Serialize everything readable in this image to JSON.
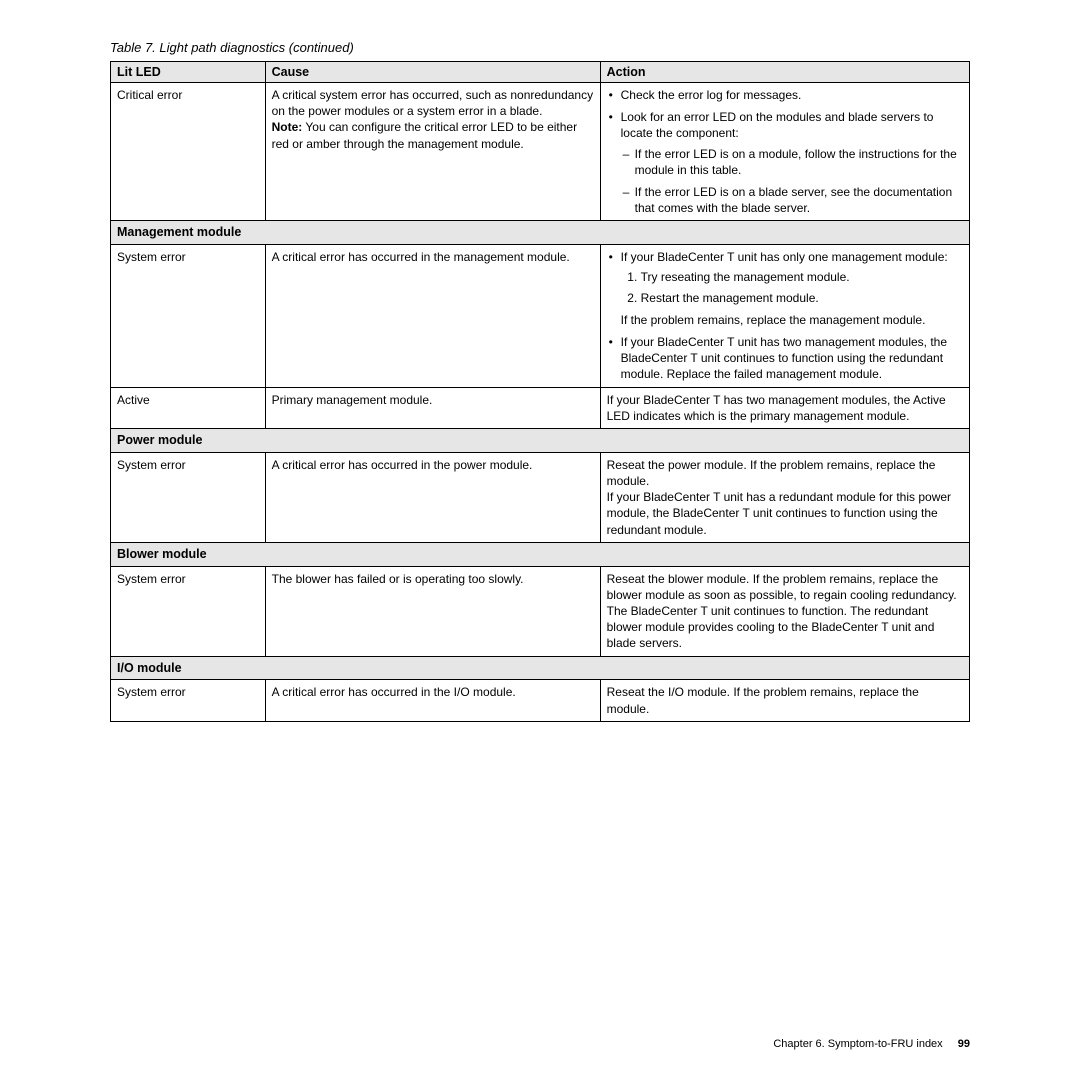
{
  "caption": "Table 7. Light path diagnostics  (continued)",
  "columns": [
    "Lit LED",
    "Cause",
    "Action"
  ],
  "rows": {
    "critical_error": {
      "led": "Critical error",
      "cause_1": "A critical system error has occurred, such as nonredundancy on the power modules or a system error in a blade.",
      "cause_note_label": "Note:",
      "cause_note_text": " You can configure the critical error LED to be either red or amber through the management module.",
      "action_b1": "Check the error log for messages.",
      "action_b2": "Look for an error LED on the modules and blade servers to locate the component:",
      "action_d1": "If the error LED is on a module, follow the instructions for the module in this table.",
      "action_d2": "If the error LED is on a blade server, see the documentation that comes with the blade server."
    },
    "mgmt_header": "Management module",
    "mgmt_system_error": {
      "led": "System error",
      "cause": "A critical error has occurred in the management module.",
      "action_b1": "If your BladeCenter T unit has only one management module:",
      "action_n1": "Try reseating the management module.",
      "action_n2": "Restart the management module.",
      "action_p1": "If the problem remains, replace the management module.",
      "action_b2": "If your BladeCenter T unit has two management modules, the BladeCenter T unit continues to function using the redundant module. Replace the failed management module."
    },
    "mgmt_active": {
      "led": "Active",
      "cause": "Primary management module.",
      "action": "If your BladeCenter T has two management modules, the Active LED indicates which is the primary management module."
    },
    "power_header": "Power module",
    "power_system_error": {
      "led": "System error",
      "cause": "A critical error has occurred in the power module.",
      "action_l1": "Reseat the power module. If the problem remains, replace the module.",
      "action_l2": "If your BladeCenter T unit has a redundant module for this power module, the BladeCenter T unit continues to function using the redundant module."
    },
    "blower_header": "Blower module",
    "blower_system_error": {
      "led": "System error",
      "cause": "The blower has failed or is operating too slowly.",
      "action": "Reseat the blower module. If the problem remains, replace the blower module as soon as possible, to regain cooling redundancy. The BladeCenter T unit continues to function. The redundant blower module provides cooling to the BladeCenter T unit and blade servers."
    },
    "io_header": "I/O module",
    "io_system_error": {
      "led": "System error",
      "cause": "A critical error has occurred in the I/O module.",
      "action": "Reseat the I/O module. If the problem remains, replace the module."
    }
  },
  "footer": {
    "chapter": "Chapter 6. Symptom-to-FRU index",
    "page": "99"
  }
}
